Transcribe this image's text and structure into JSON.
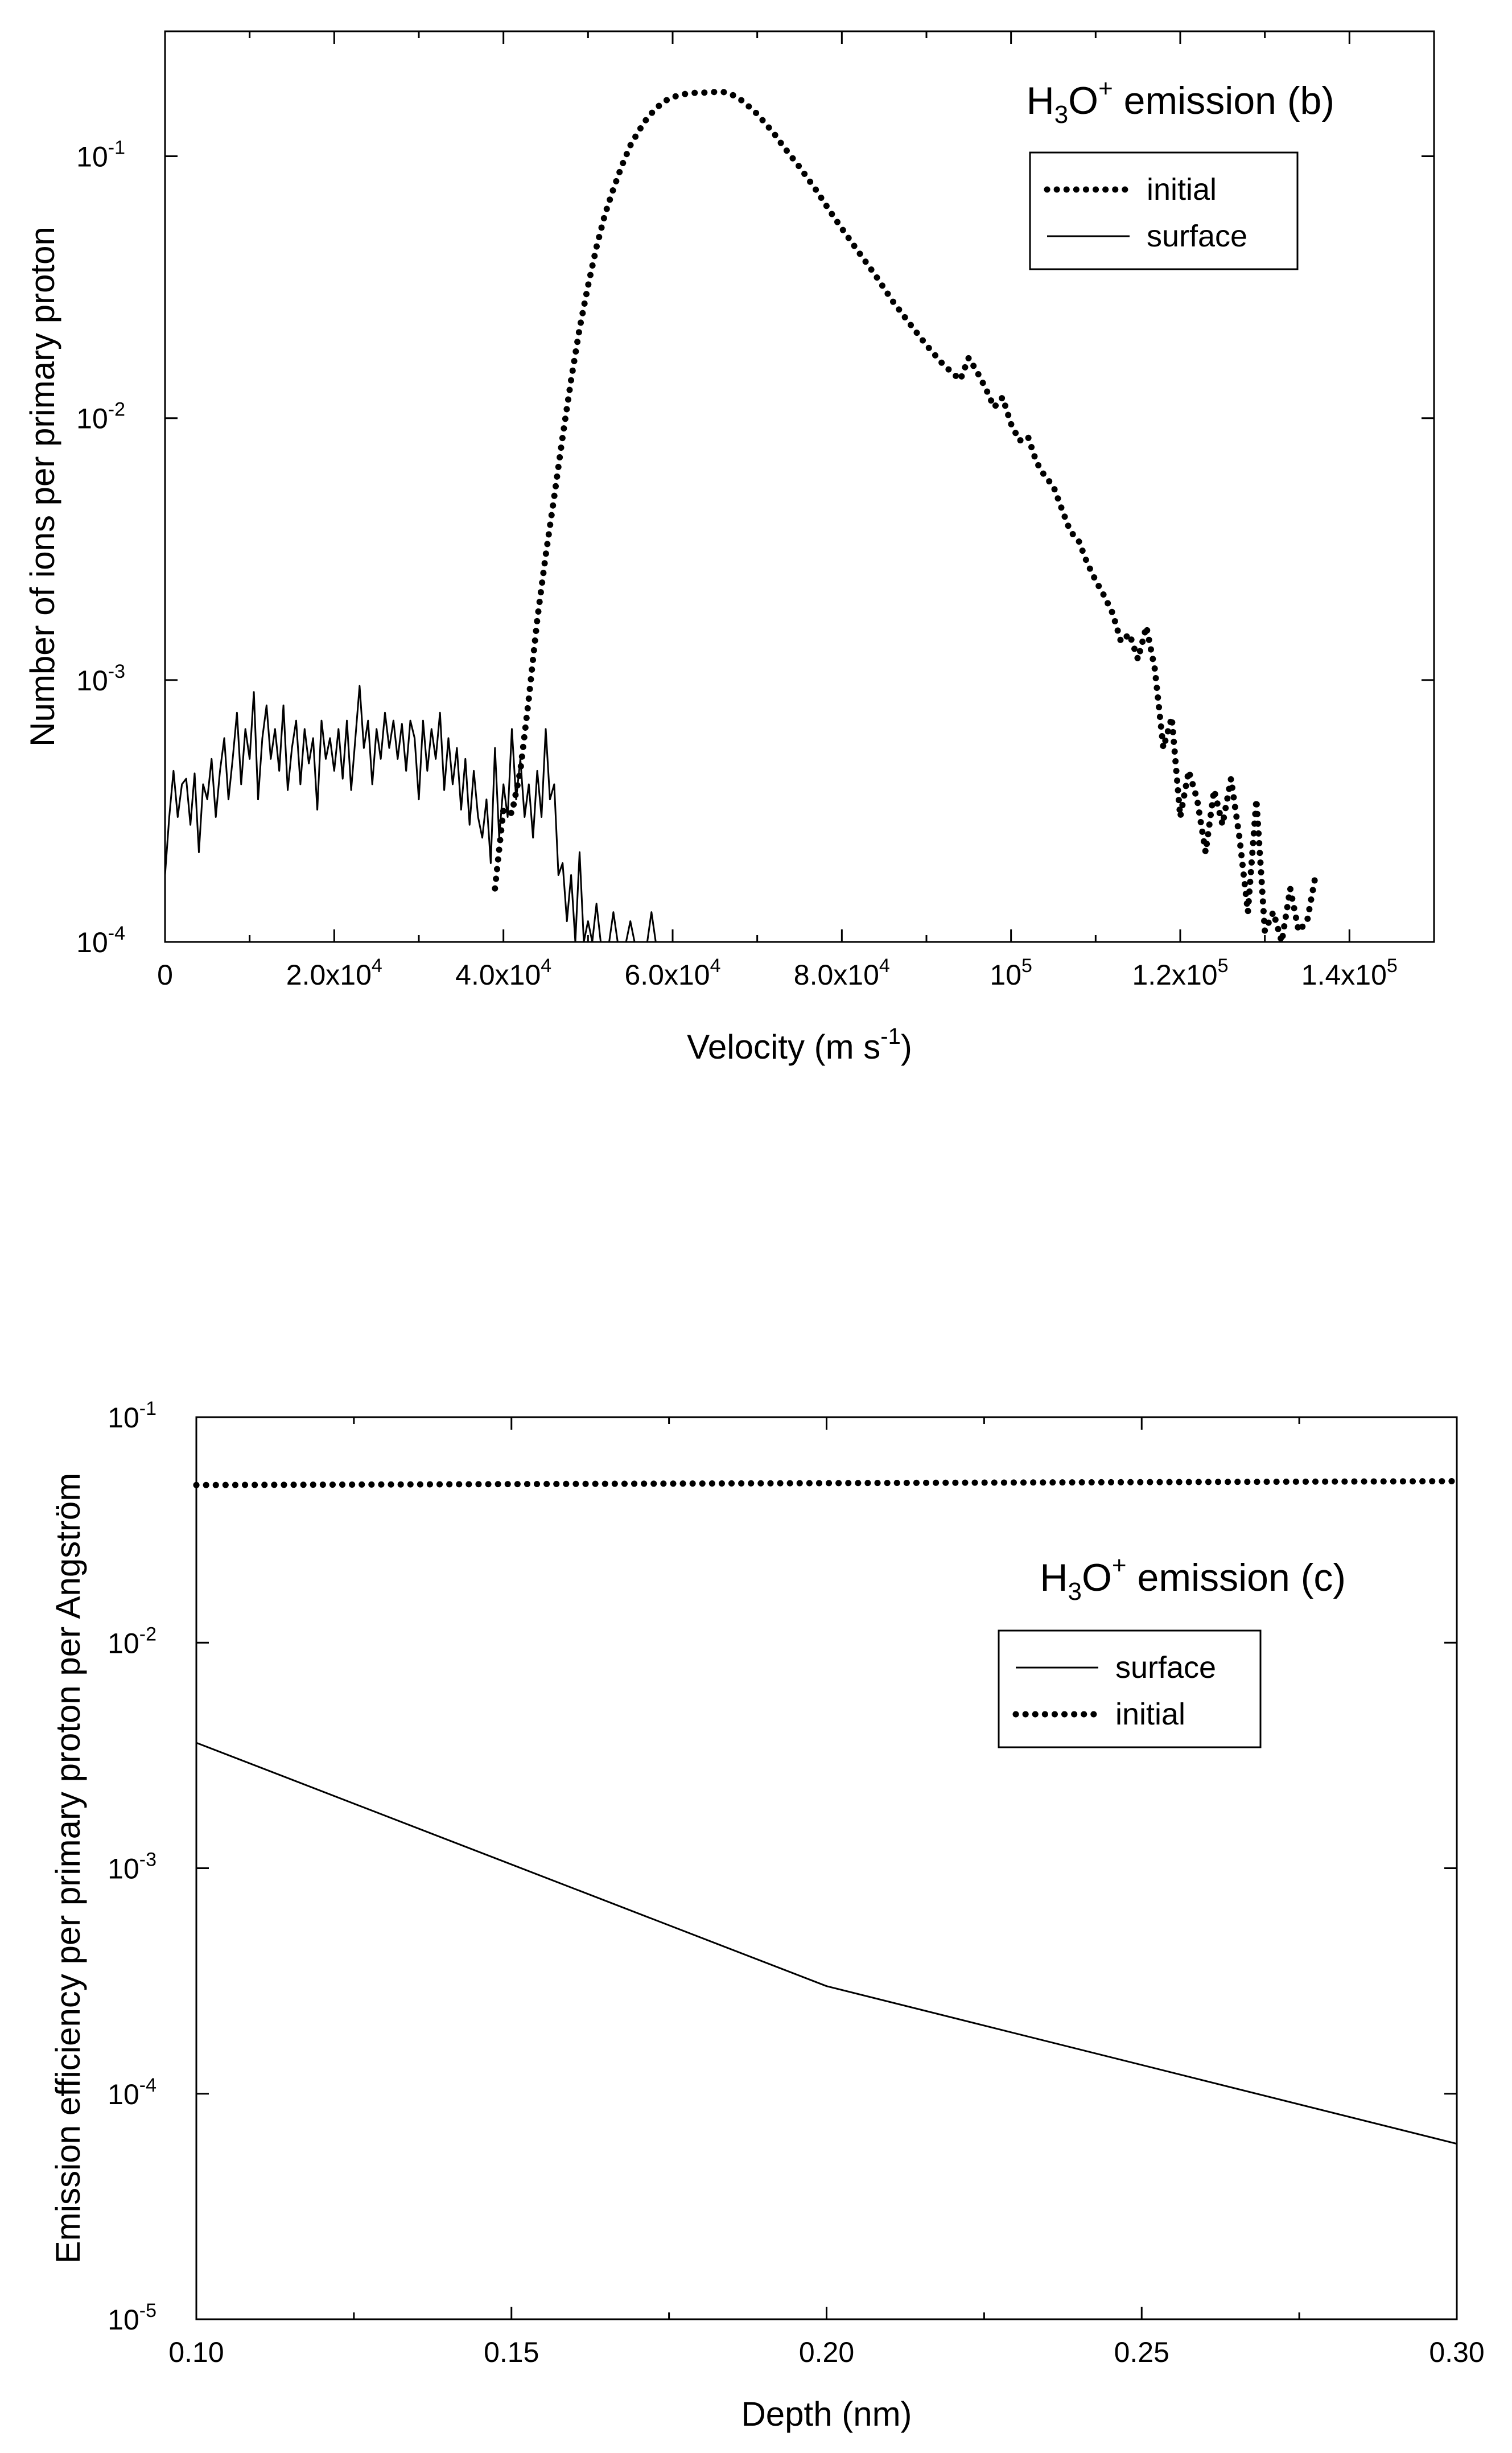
{
  "chart_data": [
    {
      "type": "line",
      "id": "b",
      "title": "H3O+ emission (b)",
      "title_parts": {
        "base": "H",
        "sub": "3",
        "mid": "O",
        "sup": "+",
        "rest": " emission (b)"
      },
      "xlabel": "Velocity (m s-1)",
      "xlabel_parts": {
        "base": "Velocity (m s",
        "sup": "-1",
        "rest": ")"
      },
      "ylabel": "Number of ions per primary proton",
      "yscale": "log",
      "xlim": [
        0,
        150000
      ],
      "ylim": [
        0.0001,
        0.3
      ],
      "xticks": [
        {
          "value": 0,
          "label": "0"
        },
        {
          "value": 20000,
          "label": "2.0x10",
          "exp": "4"
        },
        {
          "value": 40000,
          "label": "4.0x10",
          "exp": "4"
        },
        {
          "value": 60000,
          "label": "6.0x10",
          "exp": "4"
        },
        {
          "value": 80000,
          "label": "8.0x10",
          "exp": "4"
        },
        {
          "value": 100000,
          "label": "10",
          "exp": "5"
        },
        {
          "value": 120000,
          "label": "1.2x10",
          "exp": "5"
        },
        {
          "value": 140000,
          "label": "1.4x10",
          "exp": "5"
        }
      ],
      "yticks": [
        {
          "value": 0.1,
          "label": "10",
          "exp": "-1"
        },
        {
          "value": 0.01,
          "label": "10",
          "exp": "-2"
        },
        {
          "value": 0.001,
          "label": "10",
          "exp": "-3"
        },
        {
          "value": 0.0001,
          "label": "10",
          "exp": "-4"
        }
      ],
      "legend": {
        "position": "top-right",
        "entries": [
          {
            "name": "initial",
            "style": "dotted"
          },
          {
            "name": "surface",
            "style": "solid"
          }
        ]
      },
      "series": [
        {
          "name": "initial",
          "style": "dotted",
          "x": [
            39000,
            40000,
            41000,
            42000,
            43000,
            44000,
            45000,
            46000,
            47000,
            48000,
            49000,
            50000,
            51000,
            52000,
            53000,
            54000,
            55000,
            56000,
            57000,
            58000,
            59000,
            60000,
            61000,
            62000,
            63000,
            64000,
            65000,
            66000,
            67000,
            68000,
            69000,
            70000,
            71000,
            72000,
            73000,
            74000,
            75000,
            76000,
            77000,
            78000,
            79000,
            80000,
            82000,
            84000,
            86000,
            88000,
            90000,
            92000,
            94000,
            95000,
            96000,
            97000,
            98000,
            99000,
            100000,
            101000,
            102000,
            103000,
            104000,
            105000,
            106000,
            107000,
            108000,
            109000,
            110000,
            111000,
            112000,
            113000,
            114000,
            115000,
            116000,
            117000,
            118000,
            119000,
            120000,
            121000,
            122000,
            123000,
            124000,
            125000,
            126000,
            127000,
            128000,
            129000,
            130000,
            131000,
            132000,
            133000,
            134000,
            135000,
            136000
          ],
          "values": [
            0.00016,
            0.00032,
            0.00031,
            0.00045,
            0.00085,
            0.0017,
            0.003,
            0.005,
            0.0085,
            0.014,
            0.022,
            0.032,
            0.045,
            0.06,
            0.075,
            0.092,
            0.11,
            0.125,
            0.14,
            0.152,
            0.162,
            0.168,
            0.172,
            0.174,
            0.175,
            0.175,
            0.176,
            0.176,
            0.172,
            0.165,
            0.155,
            0.145,
            0.133,
            0.122,
            0.11,
            0.1,
            0.091,
            0.082,
            0.074,
            0.066,
            0.059,
            0.053,
            0.043,
            0.035,
            0.028,
            0.023,
            0.019,
            0.016,
            0.014,
            0.017,
            0.015,
            0.013,
            0.011,
            0.012,
            0.0095,
            0.0082,
            0.0085,
            0.0068,
            0.006,
            0.0055,
            0.0045,
            0.0037,
            0.0034,
            0.0028,
            0.0024,
            0.0021,
            0.0018,
            0.0014,
            0.0015,
            0.0012,
            0.0016,
            0.0011,
            0.00055,
            0.00072,
            0.0003,
            0.00045,
            0.00035,
            0.00022,
            0.00038,
            0.00028,
            0.00042,
            0.00025,
            0.00013,
            0.00035,
            0.00011,
            0.00013,
            0.0001,
            0.00016,
            0.00011,
            0.00012,
            0.00018
          ]
        },
        {
          "name": "surface",
          "style": "solid",
          "x": [
            0,
            500,
            1000,
            1500,
            2000,
            2500,
            3000,
            3500,
            4000,
            4500,
            5000,
            5500,
            6000,
            6500,
            7000,
            7500,
            8000,
            8500,
            9000,
            9500,
            10000,
            10500,
            11000,
            11500,
            12000,
            12500,
            13000,
            13500,
            14000,
            14500,
            15000,
            15500,
            16000,
            16500,
            17000,
            17500,
            18000,
            18500,
            19000,
            19500,
            20000,
            20500,
            21000,
            21500,
            22000,
            22500,
            23000,
            23500,
            24000,
            24500,
            25000,
            25500,
            26000,
            26500,
            27000,
            27500,
            28000,
            28500,
            29000,
            29500,
            30000,
            30500,
            31000,
            31500,
            32000,
            32500,
            33000,
            33500,
            34000,
            34500,
            35000,
            35500,
            36000,
            36500,
            37000,
            37500,
            38000,
            38500,
            39000,
            39500,
            40000,
            40500,
            41000,
            41500,
            42000,
            42500,
            43000,
            43500,
            44000,
            44500,
            45000,
            45500,
            46000,
            46500,
            47000,
            47500,
            48000,
            48500,
            49000,
            49500,
            50000,
            50500,
            51000,
            51500,
            52000,
            52500,
            53000,
            53500,
            54000,
            54500,
            55000,
            55500,
            56000,
            56500,
            57000,
            57500,
            58000
          ],
          "values": [
            0.00018,
            0.0003,
            0.00045,
            0.0003,
            0.0004,
            0.00042,
            0.00028,
            0.00044,
            0.00022,
            0.0004,
            0.00035,
            0.0005,
            0.0003,
            0.00045,
            0.0006,
            0.00035,
            0.0005,
            0.00075,
            0.0004,
            0.00065,
            0.0005,
            0.0009,
            0.00035,
            0.0006,
            0.0008,
            0.0005,
            0.00065,
            0.00045,
            0.0008,
            0.00038,
            0.00055,
            0.0007,
            0.0004,
            0.00065,
            0.00048,
            0.0006,
            0.00032,
            0.0007,
            0.0005,
            0.0006,
            0.00045,
            0.00065,
            0.00042,
            0.0007,
            0.00038,
            0.0006,
            0.00095,
            0.00055,
            0.0007,
            0.0004,
            0.00065,
            0.0005,
            0.00075,
            0.00055,
            0.0007,
            0.0005,
            0.00068,
            0.00045,
            0.0007,
            0.0006,
            0.00035,
            0.0007,
            0.00045,
            0.00065,
            0.0005,
            0.00075,
            0.00038,
            0.0006,
            0.0004,
            0.00055,
            0.00032,
            0.0005,
            0.00028,
            0.00045,
            0.0003,
            0.00025,
            0.00035,
            0.0002,
            0.00055,
            0.00025,
            0.0004,
            0.0003,
            0.00065,
            0.00035,
            0.0005,
            0.0003,
            0.0004,
            0.00025,
            0.00045,
            0.0003,
            0.00065,
            0.00035,
            0.0004,
            0.00018,
            0.0002,
            0.00012,
            0.00018,
            0.0001,
            0.00022,
            0.0001,
            0.00012,
            0.0001,
            0.00014,
            0.0001,
            0.0001,
            0.0001,
            0.00013,
            0.0001,
            0.0001,
            0.0001,
            0.00012,
            0.0001,
            0.0001,
            0.0001,
            0.0001,
            0.00013,
            0.0001
          ]
        }
      ]
    },
    {
      "type": "line",
      "id": "c",
      "title": "H3O+ emission (c)",
      "title_parts": {
        "base": "H",
        "sub": "3",
        "mid": "O",
        "sup": "+",
        "rest": " emission (c)"
      },
      "xlabel": "Depth (nm)",
      "ylabel": "Emission efficiency per primary proton per Angström",
      "yscale": "log",
      "xlim": [
        0.1,
        0.3
      ],
      "ylim": [
        1e-05,
        0.1
      ],
      "xticks": [
        {
          "value": 0.1,
          "label": "0.10"
        },
        {
          "value": 0.15,
          "label": "0.15"
        },
        {
          "value": 0.2,
          "label": "0.20"
        },
        {
          "value": 0.25,
          "label": "0.25"
        },
        {
          "value": 0.3,
          "label": "0.30"
        }
      ],
      "yticks": [
        {
          "value": 0.1,
          "label": "10",
          "exp": "-1"
        },
        {
          "value": 0.01,
          "label": "10",
          "exp": "-2"
        },
        {
          "value": 0.001,
          "label": "10",
          "exp": "-3"
        },
        {
          "value": 0.0001,
          "label": "10",
          "exp": "-4"
        },
        {
          "value": 1e-05,
          "label": "10",
          "exp": "-5"
        }
      ],
      "legend": {
        "position": "upper-right",
        "entries": [
          {
            "name": "surface",
            "style": "solid"
          },
          {
            "name": "initial",
            "style": "dotted"
          }
        ]
      },
      "series": [
        {
          "name": "surface",
          "style": "solid",
          "x": [
            0.1,
            0.2,
            0.3
          ],
          "values": [
            0.0036,
            0.0003,
            6e-05
          ]
        },
        {
          "name": "initial",
          "style": "dotted",
          "x": [
            0.1,
            0.2,
            0.3
          ],
          "values": [
            0.05,
            0.051,
            0.052
          ]
        }
      ]
    }
  ]
}
